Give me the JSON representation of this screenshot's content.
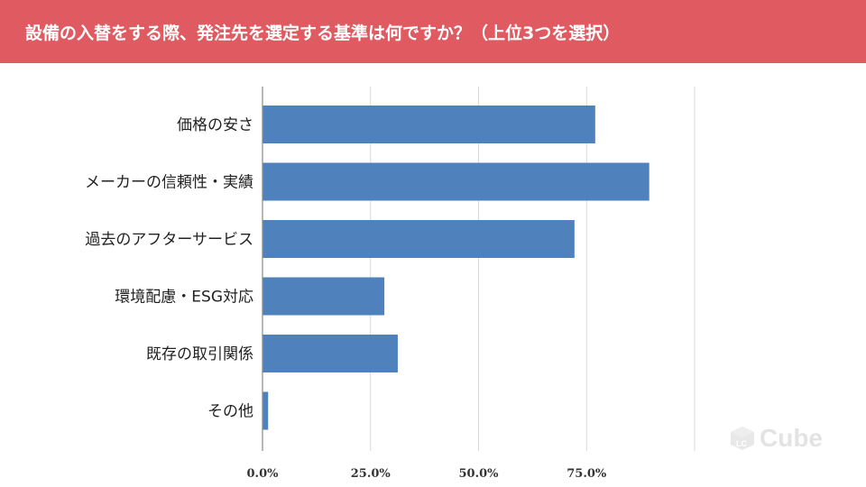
{
  "header": {
    "title": "設備の入替をする際、発注先を選定する基準は何ですか？（上位3つを選択）"
  },
  "colors": {
    "header_bg": "#e05a62",
    "bar": "#4f81bd",
    "grid": "#d9d9d9",
    "axis": "#888888"
  },
  "watermark": {
    "text": "Cube",
    "icon": "lc-cube-logo-icon"
  },
  "chart_data": {
    "type": "bar",
    "orientation": "horizontal",
    "categories": [
      "価格の安さ",
      "メーカーの信頼性・実績",
      "過去のアフターサービス",
      "環境配慮・ESG対応",
      "既存の取引関係",
      "その他"
    ],
    "values": [
      77.0,
      89.5,
      72.2,
      28.2,
      31.3,
      1.3
    ],
    "xlim": [
      0,
      100
    ],
    "x_ticks": [
      0,
      25,
      50,
      75
    ],
    "x_tick_labels": [
      "0.0%",
      "25.0%",
      "50.0%",
      "75.0%"
    ],
    "grid": true,
    "title": "",
    "xlabel": "",
    "ylabel": ""
  }
}
